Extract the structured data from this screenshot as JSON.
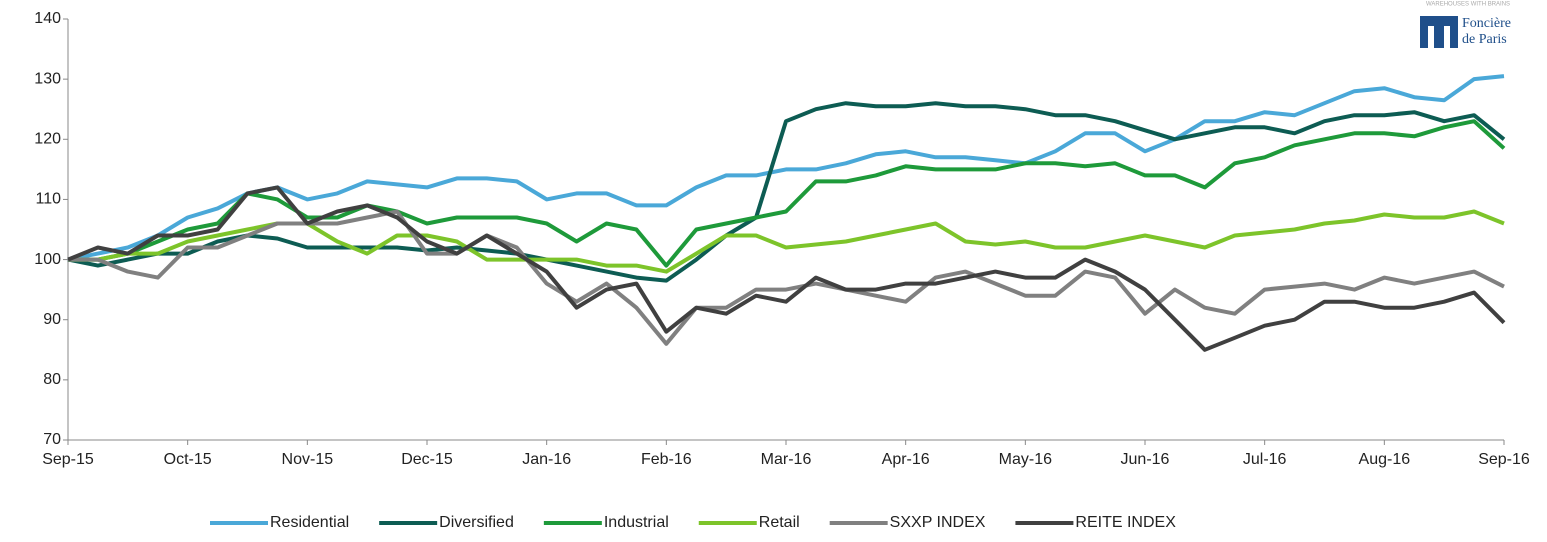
{
  "chart_data": {
    "type": "line",
    "categories": [
      "Sep-15",
      null,
      null,
      null,
      "Oct-15",
      null,
      null,
      null,
      "Nov-15",
      null,
      null,
      null,
      "Dec-15",
      null,
      null,
      null,
      "Jan-16",
      null,
      null,
      null,
      "Feb-16",
      null,
      null,
      null,
      "Mar-16",
      null,
      null,
      null,
      "Apr-16",
      null,
      null,
      null,
      "May-16",
      null,
      null,
      null,
      "Jun-16",
      null,
      null,
      null,
      "Jul-16",
      null,
      null,
      null,
      "Aug-16",
      null,
      null,
      null,
      "Sep-16"
    ],
    "ylim": [
      70,
      140
    ],
    "yticks": [
      70,
      80,
      90,
      100,
      110,
      120,
      130,
      140
    ],
    "grid": false,
    "legend": "bottom",
    "series": [
      {
        "name": "Residential",
        "color": "#4aa8d8",
        "values": [
          100,
          101,
          102,
          104,
          107,
          108.5,
          111,
          112,
          110,
          111,
          113,
          112.5,
          112,
          113.5,
          113.5,
          113,
          110,
          111,
          111,
          109,
          109,
          112,
          114,
          114,
          115,
          115,
          116,
          117.5,
          118,
          117,
          117,
          116.5,
          116,
          118,
          121,
          121,
          118,
          120,
          123,
          123,
          124.5,
          124,
          126,
          128,
          128.5,
          127,
          126.5,
          130,
          130.5
        ]
      },
      {
        "name": "Diversified",
        "color": "#0d5c53",
        "values": [
          100,
          99,
          100,
          101,
          101,
          103,
          104,
          103.5,
          102,
          102,
          102,
          102,
          101.5,
          102,
          101.5,
          101,
          100,
          99,
          98,
          97,
          96.5,
          100,
          104,
          107,
          123,
          125,
          126,
          125.5,
          125.5,
          126,
          125.5,
          125.5,
          125,
          124,
          124,
          123,
          121.5,
          120,
          121,
          122,
          122,
          121,
          123,
          124,
          124,
          124.5,
          123,
          124,
          120
        ]
      },
      {
        "name": "Industrial",
        "color": "#1e9a3a",
        "values": [
          100,
          100,
          101,
          103,
          105,
          106,
          111,
          110,
          107,
          107,
          109,
          108,
          106,
          107,
          107,
          107,
          106,
          103,
          106,
          105,
          99,
          105,
          106,
          107,
          108,
          113,
          113,
          114,
          115.5,
          115,
          115,
          115,
          116,
          116,
          115.5,
          116,
          114,
          114,
          112,
          116,
          117,
          119,
          120,
          121,
          121,
          120.5,
          122,
          123,
          118.5
        ]
      },
      {
        "name": "Retail",
        "color": "#7dc42a",
        "values": [
          100,
          100,
          101,
          101,
          103,
          104,
          105,
          106,
          106,
          103,
          101,
          104,
          104,
          103,
          100,
          100,
          100,
          100,
          99,
          99,
          98,
          101,
          104,
          104,
          102,
          102.5,
          103,
          104,
          105,
          106,
          103,
          102.5,
          103,
          102,
          102,
          103,
          104,
          103,
          102,
          104,
          104.5,
          105,
          106,
          106.5,
          107.5,
          107,
          107,
          108,
          106
        ]
      },
      {
        "name": "SXXP INDEX",
        "color": "#808080",
        "values": [
          100,
          100,
          98,
          97,
          102,
          102,
          104,
          106,
          106,
          106,
          107,
          108,
          101,
          101,
          104,
          102,
          96,
          93,
          96,
          92,
          86,
          92,
          92,
          95,
          95,
          96,
          95,
          94,
          93,
          97,
          98,
          96,
          94,
          94,
          98,
          97,
          91,
          95,
          92,
          91,
          95,
          95.5,
          96,
          95,
          97,
          96,
          97,
          98,
          95.5
        ]
      },
      {
        "name": "REITE INDEX",
        "color": "#404040",
        "values": [
          100,
          102,
          101,
          104,
          104,
          105,
          111,
          112,
          106,
          108,
          109,
          107,
          103,
          101,
          104,
          101,
          98,
          92,
          95,
          96,
          88,
          92,
          91,
          94,
          93,
          97,
          95,
          95,
          96,
          96,
          97,
          98,
          97,
          97,
          100,
          98,
          95,
          90,
          85,
          87,
          89,
          90,
          93,
          93,
          92,
          92,
          93,
          94.5,
          89.5
        ]
      }
    ]
  },
  "logo": {
    "tagline": "WAREHOUSES WITH BRAINS",
    "name": [
      "Foncière",
      "de Paris"
    ]
  }
}
